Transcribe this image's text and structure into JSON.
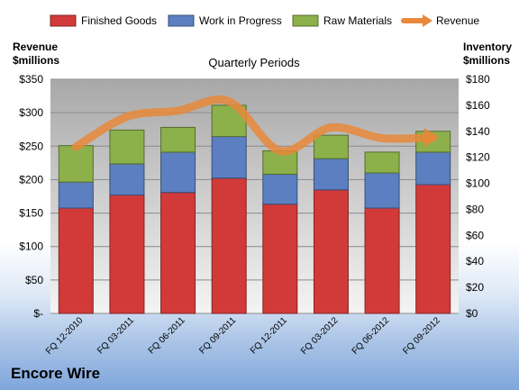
{
  "chart_data": {
    "type": "bar",
    "stacked": true,
    "subtitle": "Quarterly Periods",
    "company": "Encore Wire",
    "y_left_label": [
      "Revenue",
      "$millions"
    ],
    "y_right_label": [
      "Inventory",
      "$millions"
    ],
    "categories": [
      "FQ 12-2010",
      "FQ 03-2011",
      "FQ 06-2011",
      "FQ 09-2011",
      "FQ 12-2011",
      "FQ 03-2012",
      "FQ 06-2012",
      "FQ 09-2012"
    ],
    "left_ticks": [
      "$-",
      "$50",
      "$100",
      "$150",
      "$200",
      "$250",
      "$300",
      "$350"
    ],
    "right_ticks": [
      "$0",
      "$20",
      "$40",
      "$60",
      "$80",
      "$100",
      "$120",
      "$140",
      "$160",
      "$180"
    ],
    "ylim_left": [
      0,
      350
    ],
    "ylim_right": [
      0,
      180
    ],
    "grid": true,
    "legend_position": "top",
    "series": [
      {
        "name": "Finished Goods",
        "axis": "right",
        "color": "#d23a3a",
        "values": [
          81,
          91,
          93,
          104,
          84,
          95,
          81,
          99
        ]
      },
      {
        "name": "Work in Progress",
        "axis": "right",
        "color": "#5b7fc0",
        "values": [
          20,
          24,
          31,
          32,
          23,
          24,
          27,
          25
        ]
      },
      {
        "name": "Raw Materials",
        "axis": "right",
        "color": "#8cb04a",
        "values": [
          28,
          26,
          19,
          24,
          18,
          18,
          16,
          16
        ]
      },
      {
        "name": "Revenue",
        "axis": "left",
        "type": "line",
        "color": "#e8883a",
        "values": [
          249,
          294,
          303,
          317,
          243,
          278,
          262,
          263
        ]
      }
    ]
  }
}
